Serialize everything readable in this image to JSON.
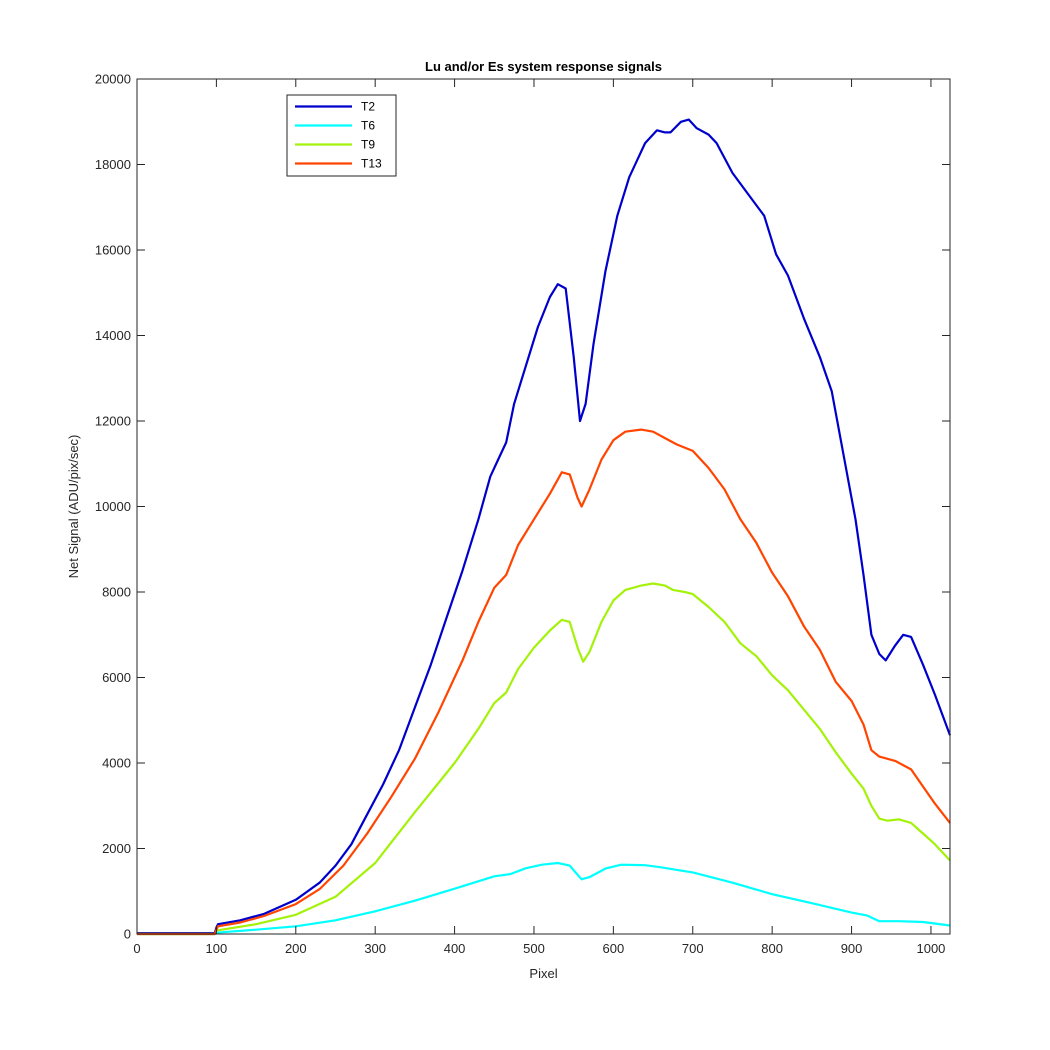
{
  "chart_data": {
    "type": "line",
    "title": "Lu and/or Es system response signals",
    "xlabel": "Pixel",
    "ylabel": "Net Signal (ADU/pix/sec)",
    "xlim": [
      0,
      1024
    ],
    "ylim": [
      0,
      20000
    ],
    "xticks": [
      0,
      100,
      200,
      300,
      400,
      500,
      600,
      700,
      800,
      900,
      1000
    ],
    "yticks": [
      0,
      2000,
      4000,
      6000,
      8000,
      10000,
      12000,
      14000,
      16000,
      18000,
      20000
    ],
    "grid": false,
    "legend_position": "top-left",
    "series": [
      {
        "name": "T2",
        "color": "#0000cc",
        "points": [
          [
            0,
            20
          ],
          [
            98,
            20
          ],
          [
            100,
            150
          ],
          [
            102,
            230
          ],
          [
            130,
            320
          ],
          [
            160,
            470
          ],
          [
            200,
            800
          ],
          [
            230,
            1200
          ],
          [
            250,
            1600
          ],
          [
            270,
            2100
          ],
          [
            290,
            2800
          ],
          [
            310,
            3500
          ],
          [
            330,
            4300
          ],
          [
            350,
            5300
          ],
          [
            370,
            6300
          ],
          [
            390,
            7400
          ],
          [
            410,
            8500
          ],
          [
            430,
            9700
          ],
          [
            445,
            10700
          ],
          [
            455,
            11100
          ],
          [
            465,
            11500
          ],
          [
            475,
            12400
          ],
          [
            490,
            13300
          ],
          [
            505,
            14200
          ],
          [
            520,
            14900
          ],
          [
            530,
            15200
          ],
          [
            540,
            15100
          ],
          [
            550,
            13500
          ],
          [
            558,
            12000
          ],
          [
            565,
            12400
          ],
          [
            575,
            13800
          ],
          [
            590,
            15500
          ],
          [
            605,
            16800
          ],
          [
            620,
            17700
          ],
          [
            640,
            18500
          ],
          [
            655,
            18800
          ],
          [
            665,
            18750
          ],
          [
            672,
            18750
          ],
          [
            685,
            19000
          ],
          [
            695,
            19050
          ],
          [
            705,
            18850
          ],
          [
            720,
            18700
          ],
          [
            730,
            18500
          ],
          [
            750,
            17800
          ],
          [
            770,
            17300
          ],
          [
            790,
            16800
          ],
          [
            805,
            15900
          ],
          [
            820,
            15400
          ],
          [
            840,
            14400
          ],
          [
            860,
            13500
          ],
          [
            875,
            12700
          ],
          [
            890,
            11200
          ],
          [
            905,
            9700
          ],
          [
            915,
            8400
          ],
          [
            925,
            7000
          ],
          [
            935,
            6550
          ],
          [
            943,
            6400
          ],
          [
            955,
            6750
          ],
          [
            965,
            7000
          ],
          [
            975,
            6950
          ],
          [
            990,
            6300
          ],
          [
            1005,
            5600
          ],
          [
            1024,
            4650
          ]
        ]
      },
      {
        "name": "T6",
        "color": "#00ffff",
        "points": [
          [
            0,
            0
          ],
          [
            98,
            0
          ],
          [
            100,
            30
          ],
          [
            150,
            100
          ],
          [
            200,
            180
          ],
          [
            250,
            320
          ],
          [
            300,
            530
          ],
          [
            350,
            780
          ],
          [
            400,
            1060
          ],
          [
            450,
            1350
          ],
          [
            470,
            1400
          ],
          [
            490,
            1540
          ],
          [
            510,
            1620
          ],
          [
            530,
            1660
          ],
          [
            545,
            1600
          ],
          [
            560,
            1280
          ],
          [
            570,
            1330
          ],
          [
            590,
            1530
          ],
          [
            610,
            1620
          ],
          [
            640,
            1610
          ],
          [
            660,
            1560
          ],
          [
            680,
            1500
          ],
          [
            700,
            1440
          ],
          [
            750,
            1200
          ],
          [
            800,
            930
          ],
          [
            850,
            720
          ],
          [
            900,
            500
          ],
          [
            920,
            430
          ],
          [
            935,
            300
          ],
          [
            960,
            300
          ],
          [
            990,
            280
          ],
          [
            1024,
            200
          ]
        ]
      },
      {
        "name": "T9",
        "color": "#a4f20a",
        "points": [
          [
            0,
            0
          ],
          [
            98,
            0
          ],
          [
            100,
            80
          ],
          [
            150,
            230
          ],
          [
            200,
            450
          ],
          [
            250,
            870
          ],
          [
            300,
            1660
          ],
          [
            350,
            2850
          ],
          [
            400,
            4000
          ],
          [
            430,
            4800
          ],
          [
            450,
            5400
          ],
          [
            465,
            5650
          ],
          [
            480,
            6200
          ],
          [
            500,
            6700
          ],
          [
            520,
            7100
          ],
          [
            535,
            7350
          ],
          [
            545,
            7300
          ],
          [
            555,
            6700
          ],
          [
            562,
            6370
          ],
          [
            570,
            6600
          ],
          [
            585,
            7300
          ],
          [
            600,
            7800
          ],
          [
            615,
            8050
          ],
          [
            635,
            8150
          ],
          [
            650,
            8200
          ],
          [
            665,
            8150
          ],
          [
            675,
            8050
          ],
          [
            690,
            8000
          ],
          [
            700,
            7950
          ],
          [
            720,
            7650
          ],
          [
            740,
            7300
          ],
          [
            760,
            6800
          ],
          [
            780,
            6500
          ],
          [
            800,
            6050
          ],
          [
            820,
            5700
          ],
          [
            840,
            5250
          ],
          [
            860,
            4800
          ],
          [
            880,
            4250
          ],
          [
            900,
            3750
          ],
          [
            915,
            3400
          ],
          [
            925,
            3000
          ],
          [
            935,
            2700
          ],
          [
            945,
            2650
          ],
          [
            960,
            2680
          ],
          [
            975,
            2600
          ],
          [
            990,
            2350
          ],
          [
            1005,
            2100
          ],
          [
            1024,
            1720
          ]
        ]
      },
      {
        "name": "T13",
        "color": "#ff4500",
        "points": [
          [
            0,
            0
          ],
          [
            98,
            0
          ],
          [
            100,
            100
          ],
          [
            102,
            180
          ],
          [
            130,
            270
          ],
          [
            160,
            420
          ],
          [
            200,
            700
          ],
          [
            230,
            1050
          ],
          [
            260,
            1600
          ],
          [
            290,
            2350
          ],
          [
            320,
            3200
          ],
          [
            350,
            4100
          ],
          [
            380,
            5200
          ],
          [
            410,
            6400
          ],
          [
            430,
            7300
          ],
          [
            450,
            8100
          ],
          [
            465,
            8400
          ],
          [
            480,
            9100
          ],
          [
            500,
            9700
          ],
          [
            520,
            10300
          ],
          [
            535,
            10800
          ],
          [
            545,
            10750
          ],
          [
            555,
            10200
          ],
          [
            560,
            10000
          ],
          [
            570,
            10400
          ],
          [
            585,
            11100
          ],
          [
            600,
            11550
          ],
          [
            615,
            11750
          ],
          [
            635,
            11800
          ],
          [
            650,
            11750
          ],
          [
            665,
            11600
          ],
          [
            680,
            11450
          ],
          [
            700,
            11300
          ],
          [
            720,
            10900
          ],
          [
            740,
            10400
          ],
          [
            760,
            9700
          ],
          [
            780,
            9150
          ],
          [
            800,
            8450
          ],
          [
            820,
            7900
          ],
          [
            840,
            7200
          ],
          [
            860,
            6650
          ],
          [
            880,
            5900
          ],
          [
            900,
            5450
          ],
          [
            915,
            4900
          ],
          [
            925,
            4300
          ],
          [
            935,
            4150
          ],
          [
            955,
            4050
          ],
          [
            975,
            3850
          ],
          [
            990,
            3450
          ],
          [
            1005,
            3050
          ],
          [
            1024,
            2600
          ]
        ]
      }
    ]
  }
}
